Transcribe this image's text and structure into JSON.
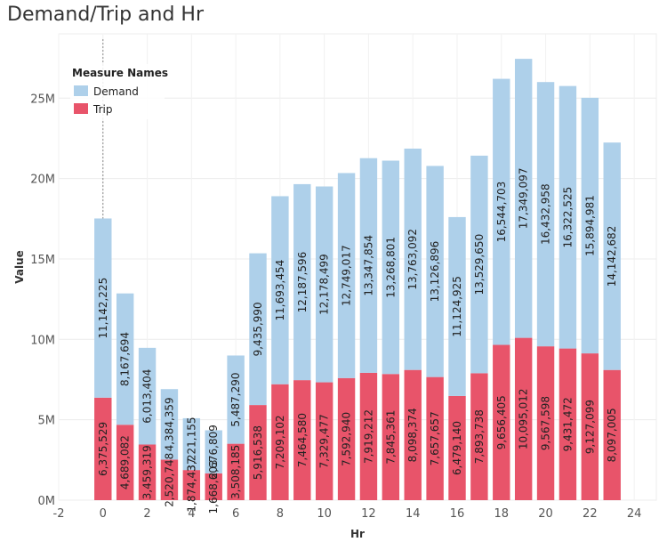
{
  "chart_data": {
    "type": "bar",
    "stacked": true,
    "title": "Demand/Trip and Hr",
    "xlabel": "Hr",
    "ylabel": "Value",
    "x": [
      0,
      1,
      2,
      3,
      4,
      5,
      6,
      7,
      8,
      9,
      10,
      11,
      12,
      13,
      14,
      15,
      16,
      17,
      18,
      19,
      20,
      21,
      22,
      23
    ],
    "series": [
      {
        "name": "Trip",
        "color": "#e8546a",
        "values": [
          6375529,
          4689082,
          3459319,
          2520748,
          1874437,
          1668603,
          3508185,
          5916538,
          7209102,
          7464580,
          7329477,
          7592940,
          7919212,
          7845361,
          8098374,
          7657657,
          6479140,
          7893738,
          9656405,
          10095012,
          9567598,
          9431472,
          9127099,
          8097005
        ],
        "labels": [
          "6,375,529",
          "4,689,082",
          "3,459,319",
          "2,520,748",
          "1,874,437",
          "1,668,603",
          "3,508,185",
          "5,916,538",
          "7,209,102",
          "7,464,580",
          "7,329,477",
          "7,592,940",
          "7,919,212",
          "7,845,361",
          "8,098,374",
          "7,657,657",
          "6,479,140",
          "7,893,738",
          "9,656,405",
          "10,095,012",
          "9,567,598",
          "9,431,472",
          "9,127,099",
          "8,097,005"
        ]
      },
      {
        "name": "Demand",
        "color": "#aed0ea",
        "values": [
          11142225,
          8167694,
          6013404,
          4384359,
          3221155,
          2676809,
          5487290,
          9435990,
          11693454,
          12187596,
          12178499,
          12749017,
          13347854,
          13268801,
          13763092,
          13126896,
          11124925,
          13529650,
          16544703,
          17349097,
          16432958,
          16322525,
          15894981,
          14142682
        ],
        "labels": [
          "11,142,225",
          "8,167,694",
          "6,013,404",
          "4,384,359",
          "3,221,155",
          "2,676,809",
          "5,487,290",
          "9,435,990",
          "11,693,454",
          "12,187,596",
          "12,178,499",
          "12,749,017",
          "13,347,854",
          "13,268,801",
          "13,763,092",
          "13,126,896",
          "11,124,925",
          "13,529,650",
          "16,544,703",
          "17,349,097",
          "16,432,958",
          "16,322,525",
          "15,894,981",
          "14,142,682"
        ]
      }
    ],
    "xlim": [
      -2,
      25
    ],
    "ylim": [
      0,
      29000000
    ],
    "xticks": [
      -2,
      0,
      2,
      4,
      6,
      8,
      10,
      12,
      14,
      16,
      18,
      20,
      22,
      24
    ],
    "xtick_labels": [
      "-2",
      "0",
      "2",
      "4",
      "6",
      "8",
      "10",
      "12",
      "14",
      "16",
      "18",
      "20",
      "22",
      "24"
    ],
    "yticks": [
      0,
      5000000,
      10000000,
      15000000,
      20000000,
      25000000
    ],
    "ytick_labels": [
      "0M",
      "5M",
      "10M",
      "15M",
      "20M",
      "25M"
    ],
    "legend": {
      "title": "Measure Names",
      "position": "top-left",
      "entries": [
        {
          "label": "Demand",
          "color": "#aed0ea"
        },
        {
          "label": "Trip",
          "color": "#e8546a"
        }
      ]
    },
    "grid": true,
    "reference_line_x": 0
  }
}
